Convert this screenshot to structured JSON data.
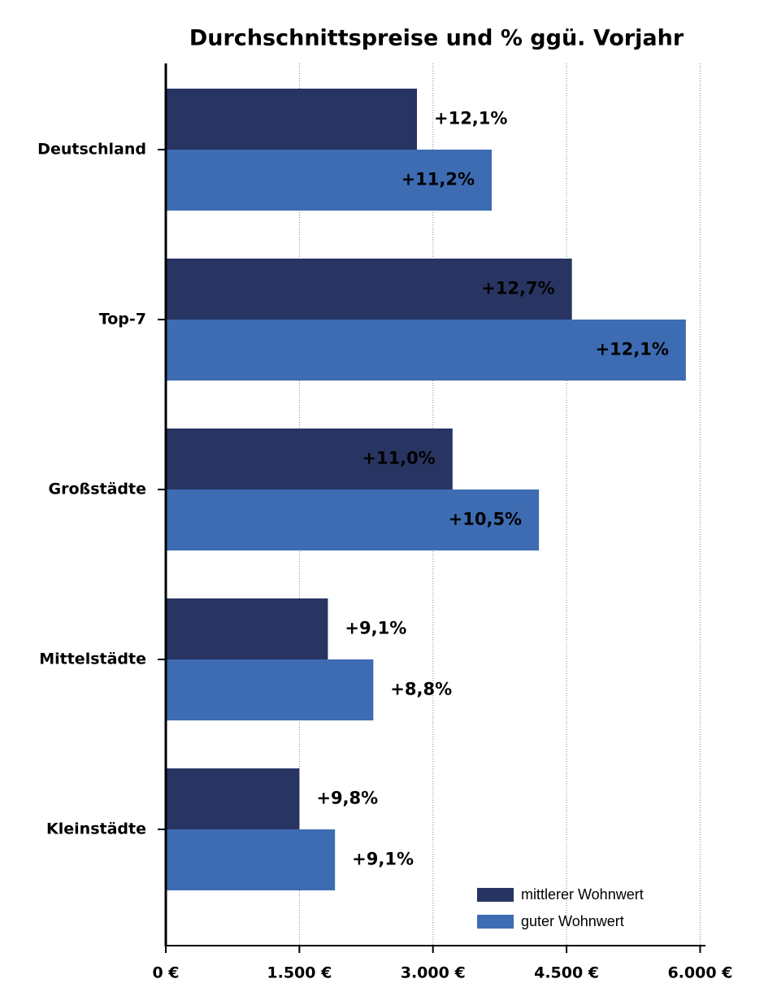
{
  "chart_data": {
    "type": "hbar",
    "title": "Durchschnittspreise und % ggü. Vorjahr",
    "categories": [
      "Deutschland",
      "Top-7",
      "Großstädte",
      "Mittelstädte",
      "Kleinstädte"
    ],
    "series": [
      {
        "name": "mittlerer Wohnwert",
        "color": "#283462",
        "values": [
          2820,
          4560,
          3220,
          1820,
          1500
        ],
        "change_labels": [
          "+12,1%",
          "+12,7%",
          "+11,0%",
          "+9,1%",
          "+9,8%"
        ]
      },
      {
        "name": "guter Wohnwert",
        "color": "#3d6cb3",
        "values": [
          3660,
          5840,
          4190,
          2330,
          1900
        ],
        "change_labels": [
          "+11,2%",
          "+12,1%",
          "+10,5%",
          "+8,8%",
          "+9,1%"
        ]
      }
    ],
    "xlim": [
      0,
      6060
    ],
    "xticks": [
      {
        "value": 0,
        "label": "0 €"
      },
      {
        "value": 1500,
        "label": "1.500 €"
      },
      {
        "value": 3000,
        "label": "3.000 €"
      },
      {
        "value": 4500,
        "label": "4.500 €"
      },
      {
        "value": 6000,
        "label": "6.000 €"
      }
    ],
    "grid": true,
    "legend": "lower right"
  }
}
